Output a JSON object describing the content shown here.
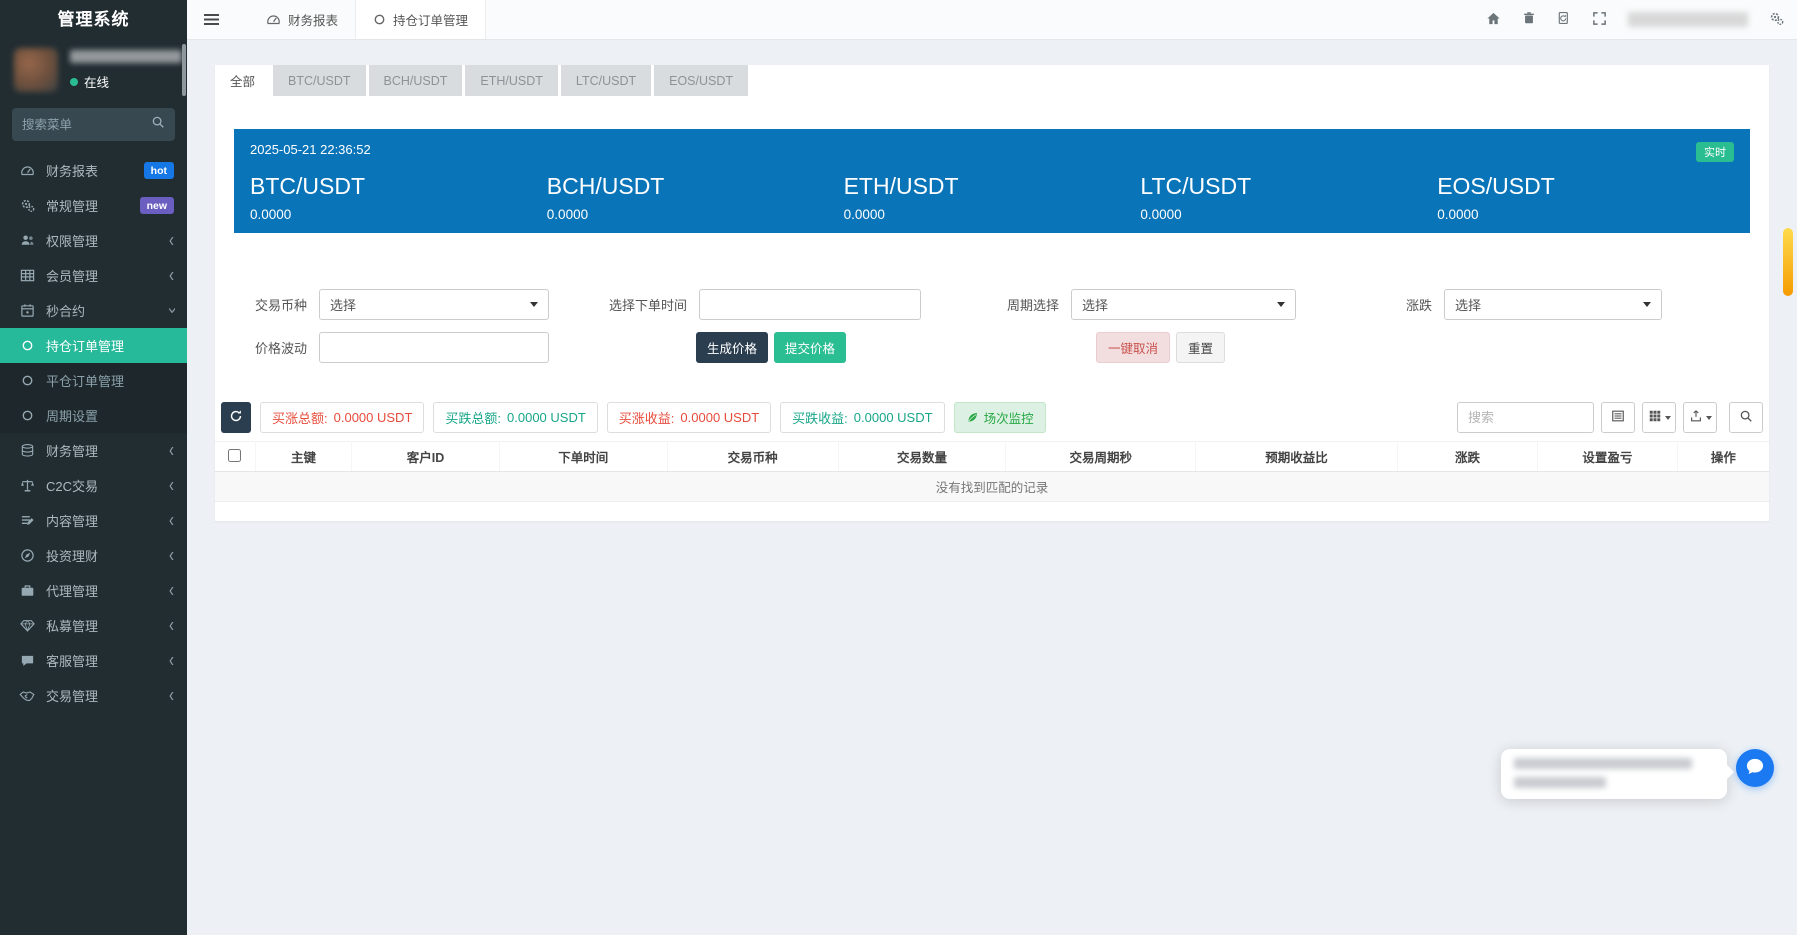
{
  "app": {
    "title": "管理系统"
  },
  "sidebar": {
    "status": "在线",
    "search_placeholder": "搜索菜单",
    "items": [
      {
        "id": "finance-report",
        "label": "财务报表",
        "icon": "dashboard-icon",
        "badge": "hot",
        "badge_color": "#1677e6"
      },
      {
        "id": "general-manage",
        "label": "常规管理",
        "icon": "cogs-icon",
        "badge": "new",
        "badge_color": "#6a5fc1"
      },
      {
        "id": "permission",
        "label": "权限管理",
        "icon": "users-icon",
        "chevron": "left"
      },
      {
        "id": "member",
        "label": "会员管理",
        "icon": "table-icon",
        "chevron": "left"
      },
      {
        "id": "second-contract",
        "label": "秒合约",
        "icon": "calendar-icon",
        "chevron": "down",
        "expanded": true,
        "children": [
          {
            "id": "position-orders",
            "label": "持仓订单管理",
            "icon": "circle-icon",
            "active": true
          },
          {
            "id": "closed-orders",
            "label": "平仓订单管理",
            "icon": "circle-icon",
            "active": false
          },
          {
            "id": "period-settings",
            "label": "周期设置",
            "icon": "circle-icon",
            "active": false
          }
        ]
      },
      {
        "id": "finance",
        "label": "财务管理",
        "icon": "finance-icon",
        "chevron": "left"
      },
      {
        "id": "c2c-trade",
        "label": "C2C交易",
        "icon": "scale-icon",
        "chevron": "left"
      },
      {
        "id": "content",
        "label": "内容管理",
        "icon": "content-icon",
        "chevron": "left"
      },
      {
        "id": "invest",
        "label": "投资理财",
        "icon": "invest-icon",
        "chevron": "left"
      },
      {
        "id": "agency",
        "label": "代理管理",
        "icon": "briefcase-icon",
        "chevron": "left"
      },
      {
        "id": "private-fund",
        "label": "私募管理",
        "icon": "gem-icon",
        "chevron": "left"
      },
      {
        "id": "customer-service",
        "label": "客服管理",
        "icon": "comment-icon",
        "chevron": "left"
      },
      {
        "id": "trade",
        "label": "交易管理",
        "icon": "handshake-icon",
        "chevron": "left"
      }
    ]
  },
  "topbar": {
    "tabs": [
      {
        "id": "finance-report",
        "label": "财务报表",
        "icon": "dashboard-icon",
        "active": false
      },
      {
        "id": "position-orders",
        "label": "持仓订单管理",
        "icon": "circle-icon",
        "active": true
      }
    ]
  },
  "main": {
    "tabs": [
      {
        "id": "all",
        "label": "全部",
        "active": true
      },
      {
        "id": "btc-usdt",
        "label": "BTC/USDT",
        "active": false
      },
      {
        "id": "bch-usdt",
        "label": "BCH/USDT",
        "active": false
      },
      {
        "id": "eth-usdt",
        "label": "ETH/USDT",
        "active": false
      },
      {
        "id": "ltc-usdt",
        "label": "LTC/USDT",
        "active": false
      },
      {
        "id": "eos-usdt",
        "label": "EOS/USDT",
        "active": false
      }
    ],
    "banner": {
      "timestamp": "2025-05-21 22:36:52",
      "live_badge": "实时",
      "pairs": [
        {
          "id": "btc-usdt",
          "name": "BTC/USDT",
          "price": "0.0000"
        },
        {
          "id": "bch-usdt",
          "name": "BCH/USDT",
          "price": "0.0000"
        },
        {
          "id": "eth-usdt",
          "name": "ETH/USDT",
          "price": "0.0000"
        },
        {
          "id": "ltc-usdt",
          "name": "LTC/USDT",
          "price": "0.0000"
        },
        {
          "id": "eos-usdt",
          "name": "EOS/USDT",
          "price": "0.0000"
        }
      ]
    },
    "filters": {
      "coin_label": "交易币种",
      "coin_value": "选择",
      "time_label": "选择下单时间",
      "period_label": "周期选择",
      "period_value": "选择",
      "updown_label": "涨跌",
      "updown_value": "选择",
      "volatility_label": "价格波动",
      "generate_btn": "生成价格",
      "submit_btn": "提交价格",
      "cancel_all_btn": "一键取消",
      "reset_btn": "重置"
    },
    "stats": [
      {
        "id": "buy-up-total",
        "label": "买涨总额:",
        "value": "0.0000 USDT",
        "color": "#e74c3c"
      },
      {
        "id": "buy-down-total",
        "label": "买跌总额:",
        "value": "0.0000 USDT",
        "color": "#18a689"
      },
      {
        "id": "buy-up-profit",
        "label": "买涨收益:",
        "value": "0.0000 USDT",
        "color": "#e74c3c"
      },
      {
        "id": "buy-down-profit",
        "label": "买跌收益:",
        "value": "0.0000 USDT",
        "color": "#18a689"
      }
    ],
    "monitor_btn": "场次监控",
    "table": {
      "search_placeholder": "搜索",
      "headers": [
        {
          "id": "id",
          "label": "主键"
        },
        {
          "id": "client-id",
          "label": "客户ID"
        },
        {
          "id": "order-time",
          "label": "下单时间"
        },
        {
          "id": "coin",
          "label": "交易币种"
        },
        {
          "id": "amount",
          "label": "交易数量"
        },
        {
          "id": "period-seconds",
          "label": "交易周期秒"
        },
        {
          "id": "expect-ratio",
          "label": "预期收益比"
        },
        {
          "id": "updown",
          "label": "涨跌"
        },
        {
          "id": "set-profit",
          "label": "设置盈亏"
        },
        {
          "id": "action",
          "label": "操作"
        }
      ],
      "empty_text": "没有找到匹配的记录"
    }
  },
  "colors": {
    "sidebar_bg": "#222d32",
    "active_green": "#26b99a",
    "banner_blue": "#0a74b9",
    "live_badge_green": "#2abd91",
    "dark_btn": "#2b3e50",
    "green_btn": "#2cbe93",
    "up_red": "#e74c3c",
    "down_green": "#18a689"
  }
}
